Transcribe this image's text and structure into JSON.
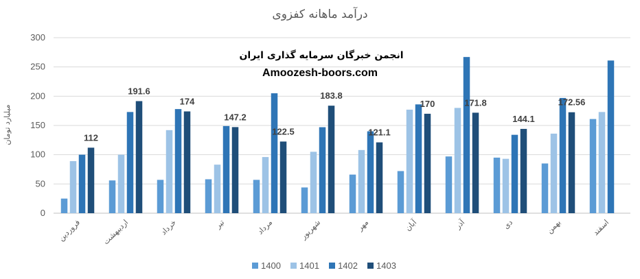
{
  "chart_data": {
    "type": "bar",
    "title": "درآمد ماهانه کفزوی",
    "ylabel": "میلیارد تومان",
    "xlabel": "",
    "ylim": [
      0,
      300
    ],
    "yticks": [
      0,
      50,
      100,
      150,
      200,
      250,
      300
    ],
    "grid": true,
    "legend_position": "bottom",
    "categories": [
      "فروردین",
      "اردیبهشت",
      "خرداد",
      "تیر",
      "مرداد",
      "شهریور",
      "مهر",
      "آبان",
      "آذر",
      "دی",
      "بهمن",
      "اسفند"
    ],
    "series": [
      {
        "name": "1400",
        "color": "#5b9bd5",
        "values": [
          25,
          56,
          57,
          58,
          57,
          44,
          66,
          72,
          97,
          95,
          85,
          161
        ]
      },
      {
        "name": "1401",
        "color": "#9dc3e6",
        "values": [
          89,
          100,
          142,
          83,
          96,
          105,
          108,
          177,
          180,
          93,
          136,
          173
        ]
      },
      {
        "name": "1402",
        "color": "#2e75b6",
        "values": [
          100,
          173,
          178,
          149,
          205,
          147,
          140,
          186,
          267,
          134,
          197,
          261
        ]
      },
      {
        "name": "1403",
        "color": "#1f4e79",
        "values": [
          112,
          191.6,
          174,
          147.2,
          122.5,
          183.8,
          121.1,
          170,
          171.8,
          144.1,
          172.56,
          null
        ]
      }
    ],
    "data_labels": [
      "112",
      "191.6",
      "174",
      "147.2",
      "122.5",
      "183.8",
      "121.1",
      "170",
      "171.8",
      "144.1",
      "172.56",
      ""
    ]
  },
  "watermark": {
    "line1": "انجمن خبرگان سرمایه گذاری ایران",
    "line2": "Amoozesh-boors.com"
  }
}
